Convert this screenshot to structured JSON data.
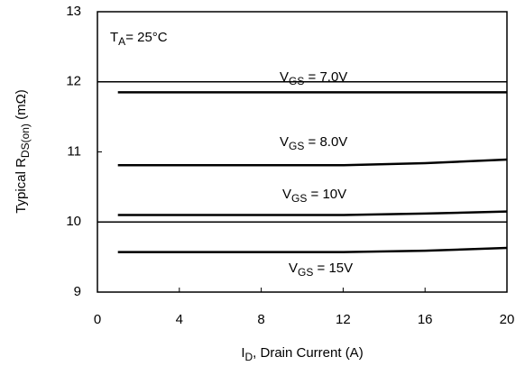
{
  "chart_data": {
    "type": "line",
    "annotation": "TA= 25°C",
    "xlabel": "ID, Drain Current (A)",
    "ylabel": "Typical RDS(on) (mΩ)",
    "x": [
      1,
      4,
      8,
      12,
      16,
      20
    ],
    "series": [
      {
        "name": "VGS = 7.0V",
        "color": "#000000",
        "values": [
          11.85,
          11.85,
          11.85,
          11.85,
          11.85,
          11.85
        ]
      },
      {
        "name": "VGS = 8.0V",
        "color": "#000000",
        "values": [
          10.81,
          10.81,
          10.81,
          10.81,
          10.84,
          10.89
        ]
      },
      {
        "name": "VGS = 10V",
        "color": "#000000",
        "values": [
          10.1,
          10.1,
          10.1,
          10.1,
          10.12,
          10.15
        ]
      },
      {
        "name": "VGS = 15V",
        "color": "#000000",
        "values": [
          9.57,
          9.57,
          9.57,
          9.57,
          9.59,
          9.63
        ]
      }
    ],
    "xlim": [
      0,
      20
    ],
    "xticks": [
      0,
      4,
      8,
      12,
      16,
      20
    ],
    "ylim": [
      9,
      13
    ],
    "yticks": [
      9,
      10,
      11,
      12,
      13
    ],
    "grid_lines": [
      10,
      12
    ]
  }
}
